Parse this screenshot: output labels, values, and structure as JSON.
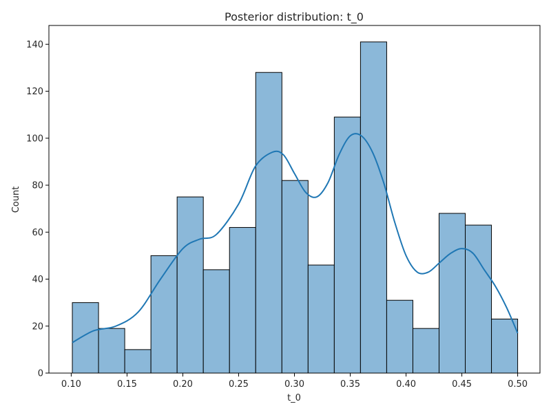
{
  "chart_data": {
    "type": "bar",
    "title": "Posterior distribution: t_0",
    "xlabel": "t_0",
    "ylabel": "Count",
    "xlim": [
      0.08,
      0.52
    ],
    "ylim": [
      0,
      148
    ],
    "xticks": [
      0.1,
      0.15,
      0.2,
      0.25,
      0.3,
      0.35,
      0.4,
      0.45,
      0.5
    ],
    "xtick_labels": [
      "0.10",
      "0.15",
      "0.20",
      "0.25",
      "0.30",
      "0.35",
      "0.40",
      "0.45",
      "0.50"
    ],
    "yticks": [
      0,
      20,
      40,
      60,
      80,
      100,
      120,
      140
    ],
    "ytick_labels": [
      "0",
      "20",
      "40",
      "60",
      "80",
      "100",
      "120",
      "140"
    ],
    "bin_start": 0.101,
    "bin_end": 0.5,
    "counts": [
      30,
      19,
      10,
      50,
      75,
      44,
      62,
      128,
      82,
      46,
      109,
      141,
      31,
      19,
      68,
      63,
      23
    ],
    "kde": {
      "x": [
        0.101,
        0.12,
        0.14,
        0.16,
        0.18,
        0.2,
        0.215,
        0.23,
        0.25,
        0.265,
        0.28,
        0.29,
        0.3,
        0.31,
        0.32,
        0.33,
        0.34,
        0.35,
        0.36,
        0.37,
        0.38,
        0.39,
        0.4,
        0.41,
        0.42,
        0.43,
        0.44,
        0.45,
        0.46,
        0.47,
        0.48,
        0.49,
        0.5
      ],
      "y": [
        13,
        18,
        20,
        26,
        40,
        53,
        57,
        59,
        72,
        88,
        94,
        93,
        85,
        77,
        75,
        81,
        93,
        101,
        101,
        94,
        81,
        64,
        50,
        43,
        43,
        47,
        51,
        53,
        51,
        44,
        37,
        28,
        17
      ]
    },
    "grid": false,
    "colors": {
      "bar_fill": "#8bb8d9",
      "bar_edge": "#000000",
      "kde_line": "#1f77b4"
    }
  }
}
